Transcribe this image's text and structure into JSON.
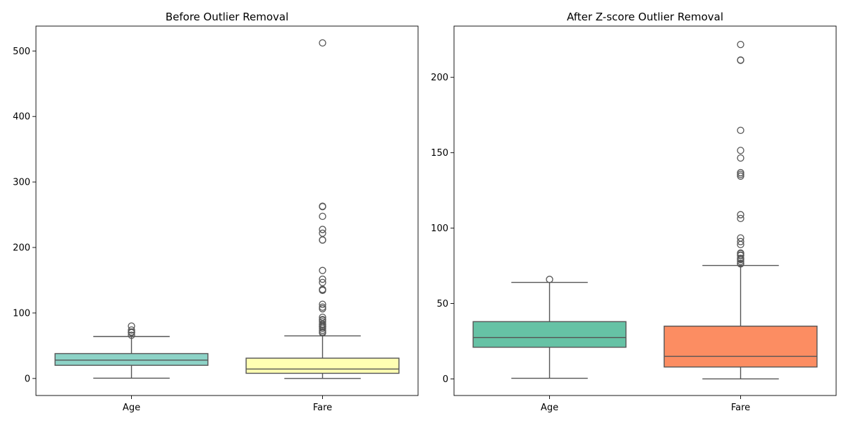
{
  "chart_data": [
    {
      "type": "box",
      "title": "Before Outlier Removal",
      "xlabel": "",
      "ylabel": "",
      "ylim": [
        -26,
        538
      ],
      "yticks": [
        0,
        100,
        200,
        300,
        400,
        500
      ],
      "grid": false,
      "categories": [
        "Age",
        "Fare"
      ],
      "colors": [
        "#8dd3c7",
        "#ffffb3"
      ],
      "boxes": [
        {
          "category": "Age",
          "whisker_low": 0.42,
          "q1": 20.1,
          "median": 28.0,
          "q3": 38.0,
          "whisker_high": 64.0,
          "fliers": [
            66.0,
            70.0,
            70.5,
            71.0,
            74.0,
            80.0
          ]
        },
        {
          "category": "Fare",
          "whisker_low": 0.0,
          "q1": 7.91,
          "median": 14.45,
          "q3": 31.0,
          "whisker_high": 65.0,
          "fliers": [
            69.55,
            71.0,
            73.5,
            76.73,
            78.85,
            79.65,
            80.0,
            82.17,
            83.16,
            86.5,
            89.1,
            90.0,
            93.5,
            106.43,
            108.9,
            113.28,
            134.5,
            135.63,
            136.0,
            146.52,
            151.55,
            164.87,
            211.34,
            211.5,
            221.78,
            227.53,
            247.52,
            262.38,
            263.0,
            512.33
          ]
        }
      ]
    },
    {
      "type": "box",
      "title": "After Z-score Outlier Removal",
      "xlabel": "",
      "ylabel": "",
      "ylim": [
        -11,
        234
      ],
      "yticks": [
        0,
        50,
        100,
        150,
        200
      ],
      "grid": false,
      "categories": [
        "Age",
        "Fare"
      ],
      "colors": [
        "#66c2a5",
        "#fc8d62"
      ],
      "boxes": [
        {
          "category": "Age",
          "whisker_low": 0.42,
          "q1": 21.0,
          "median": 27.5,
          "q3": 38.0,
          "whisker_high": 64.0,
          "fliers": [
            66.0
          ]
        },
        {
          "category": "Fare",
          "whisker_low": 0.0,
          "q1": 7.9,
          "median": 15.0,
          "q3": 35.0,
          "whisker_high": 75.25,
          "fliers": [
            76.29,
            76.73,
            77.96,
            79.2,
            79.65,
            80.0,
            81.86,
            82.17,
            83.16,
            83.47,
            89.1,
            91.08,
            93.5,
            106.43,
            108.9,
            134.5,
            135.63,
            136.78,
            146.52,
            151.55,
            164.87,
            211.34,
            211.5,
            221.78
          ]
        }
      ]
    }
  ]
}
